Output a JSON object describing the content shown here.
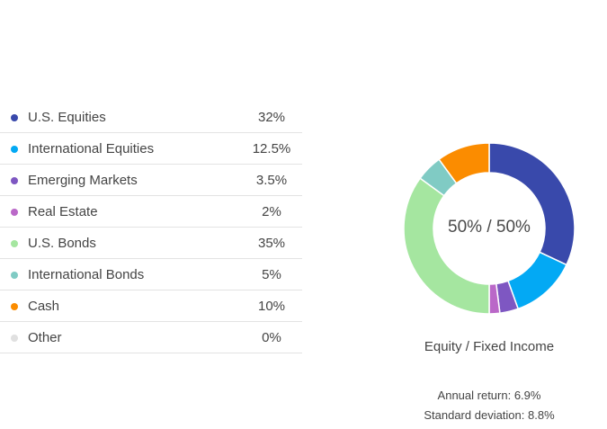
{
  "chart_data": {
    "type": "pie",
    "donut": true,
    "center_label": "50% / 50%",
    "caption": "Equity / Fixed Income",
    "categories": [
      "U.S. Equities",
      "International Equities",
      "Emerging Markets",
      "Real Estate",
      "U.S. Bonds",
      "International Bonds",
      "Cash",
      "Other"
    ],
    "values": [
      32,
      12.5,
      3.5,
      2,
      35,
      5,
      10,
      0
    ],
    "value_labels": [
      "32%",
      "12.5%",
      "3.5%",
      "2%",
      "35%",
      "5%",
      "10%",
      "0%"
    ],
    "colors": [
      "#3949ab",
      "#03a9f4",
      "#7e57c2",
      "#ba68c8",
      "#a5e6a0",
      "#80cbc4",
      "#fb8c00",
      "#e0e0e0"
    ]
  },
  "stats": {
    "annual_return": "Annual return: 6.9%",
    "std_deviation": "Standard deviation: 8.8%"
  }
}
